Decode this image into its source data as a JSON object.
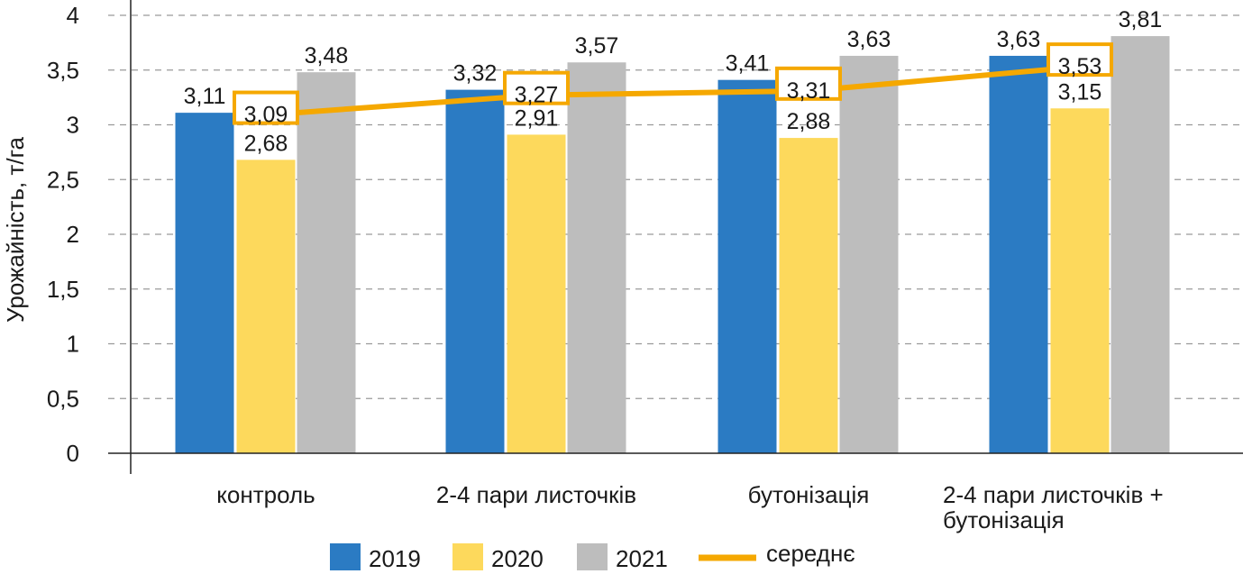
{
  "chart_data": {
    "type": "bar",
    "title": "",
    "ylabel": "Урожайність, т/га",
    "xlabel": "",
    "ylim": [
      0,
      4
    ],
    "yticks": [
      0,
      0.5,
      1,
      1.5,
      2,
      2.5,
      3,
      3.5,
      4
    ],
    "ytick_labels": [
      "0",
      "0,5",
      "1",
      "1,5",
      "2",
      "2,5",
      "3",
      "3,5",
      "4"
    ],
    "grid": true,
    "legend_position": "bottom",
    "categories": [
      [
        "контроль"
      ],
      [
        "2-4 пари листочків"
      ],
      [
        "бутонізація"
      ],
      [
        "2-4 пари листочків +",
        "бутонізація"
      ]
    ],
    "series": [
      {
        "name": "2019",
        "type": "bar",
        "color": "#2b7bc3",
        "values": [
          3.11,
          3.32,
          3.41,
          3.63
        ],
        "labels": [
          "3,11",
          "3,32",
          "3,41",
          "3,63"
        ]
      },
      {
        "name": "2020",
        "type": "bar",
        "color": "#fdd95c",
        "values": [
          2.68,
          2.91,
          2.88,
          3.15
        ],
        "labels": [
          "2,68",
          "2,91",
          "2,88",
          "3,15"
        ]
      },
      {
        "name": "2021",
        "type": "bar",
        "color": "#bdbdbd",
        "values": [
          3.48,
          3.57,
          3.63,
          3.81
        ],
        "labels": [
          "3,48",
          "3,57",
          "3,63",
          "3,81"
        ]
      },
      {
        "name": "середнє",
        "type": "line",
        "color": "#f5a800",
        "values": [
          3.09,
          3.27,
          3.31,
          3.53
        ],
        "labels": [
          "3,09",
          "3,27",
          "3,31",
          "3,53"
        ]
      }
    ]
  }
}
